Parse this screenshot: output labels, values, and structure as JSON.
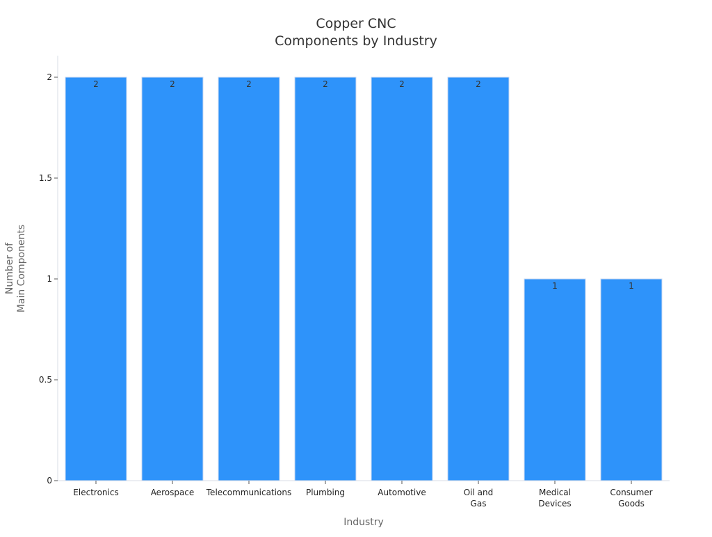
{
  "chart_data": {
    "type": "bar",
    "title": [
      "Copper CNC",
      "Components by Industry"
    ],
    "xlabel": "Industry",
    "ylabel": [
      "Number of",
      "Main Components"
    ],
    "categories": [
      [
        "Electronics"
      ],
      [
        "Aerospace"
      ],
      [
        "Telecommunications"
      ],
      [
        "Plumbing"
      ],
      [
        "Automotive"
      ],
      [
        "Oil and",
        "Gas"
      ],
      [
        "Medical",
        "Devices"
      ],
      [
        "Consumer",
        "Goods"
      ]
    ],
    "values": [
      2,
      2,
      2,
      2,
      2,
      2,
      1,
      1
    ],
    "data_labels": [
      "2",
      "2",
      "2",
      "2",
      "2",
      "2",
      "1",
      "1"
    ],
    "ylim": [
      0,
      2
    ],
    "yticks": [
      {
        "value": 0,
        "label": "0"
      },
      {
        "value": 0.5,
        "label": "0.5"
      },
      {
        "value": 1,
        "label": "1"
      },
      {
        "value": 1.5,
        "label": "1.5"
      },
      {
        "value": 2,
        "label": "2"
      }
    ],
    "grid": false,
    "legend": "none",
    "colors": {
      "bar": "#2e93fa"
    }
  }
}
